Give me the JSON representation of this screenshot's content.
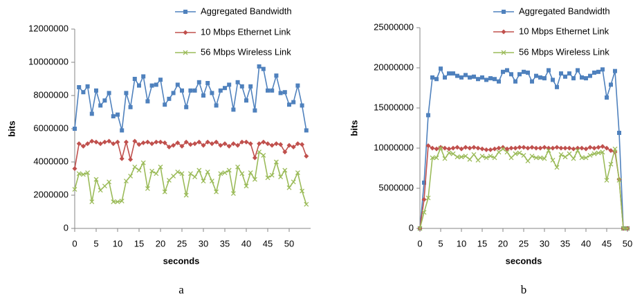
{
  "chart_data": [
    {
      "type": "line",
      "caption": "a",
      "x_label": "seconds",
      "y_label": "bits",
      "x": [
        0,
        1,
        2,
        3,
        4,
        5,
        6,
        7,
        8,
        9,
        10,
        11,
        12,
        13,
        14,
        15,
        16,
        17,
        18,
        19,
        20,
        21,
        22,
        23,
        24,
        25,
        26,
        27,
        28,
        29,
        30,
        31,
        32,
        33,
        34,
        35,
        36,
        37,
        38,
        39,
        40,
        41,
        42,
        43,
        44,
        45,
        46,
        47,
        48,
        49,
        50,
        51,
        52,
        53,
        54
      ],
      "xlim": [
        0,
        55
      ],
      "xticks": [
        0,
        5,
        10,
        15,
        20,
        25,
        30,
        35,
        40,
        45,
        50
      ],
      "ylim": [
        0,
        12000000
      ],
      "yticks": [
        0,
        2000000,
        4000000,
        6000000,
        8000000,
        10000000,
        12000000
      ],
      "grid": false,
      "series": [
        {
          "name": "Aggregated Bandwidth",
          "color": "#4f81bd",
          "marker": "square",
          "values": [
            6000000,
            8500000,
            8200000,
            8550000,
            6900000,
            8300000,
            7400000,
            7700000,
            8150000,
            6750000,
            6850000,
            5900000,
            8150000,
            7300000,
            9000000,
            8600000,
            9150000,
            7650000,
            8600000,
            8650000,
            8950000,
            7450000,
            7800000,
            8150000,
            8650000,
            8300000,
            7300000,
            8300000,
            8300000,
            8800000,
            8000000,
            8750000,
            8150000,
            7400000,
            8300000,
            8450000,
            8650000,
            7150000,
            8800000,
            8550000,
            7700000,
            8550000,
            7100000,
            9750000,
            9600000,
            8300000,
            8300000,
            9200000,
            8150000,
            8200000,
            7450000,
            7600000,
            8600000,
            7400000,
            5900000
          ]
        },
        {
          "name": "10 Mbps Ethernet Link",
          "color": "#c0504d",
          "marker": "diamond",
          "values": [
            3600000,
            5100000,
            4950000,
            5100000,
            5250000,
            5200000,
            5100000,
            5200000,
            5250000,
            5100000,
            5200000,
            4200000,
            5200000,
            4150000,
            5250000,
            5050000,
            5150000,
            5200000,
            5100000,
            5200000,
            5200000,
            5150000,
            4900000,
            5000000,
            5150000,
            4950000,
            5200000,
            5050000,
            5100000,
            5200000,
            5000000,
            5200000,
            5100000,
            5200000,
            5000000,
            5100000,
            4950000,
            5100000,
            5000000,
            5200000,
            5200000,
            5100000,
            4250000,
            5100000,
            5200000,
            5100000,
            5000000,
            5100000,
            5050000,
            4600000,
            5000000,
            4900000,
            5100000,
            5050000,
            4350000
          ]
        },
        {
          "name": "56 Mbps Wireless Link",
          "color": "#9bbb59",
          "marker": "x",
          "values": [
            2350000,
            3300000,
            3250000,
            3350000,
            1600000,
            2950000,
            2300000,
            2550000,
            2800000,
            1600000,
            1600000,
            1650000,
            2850000,
            3150000,
            3700000,
            3500000,
            3950000,
            2400000,
            3450000,
            3300000,
            3700000,
            2200000,
            2900000,
            3150000,
            3400000,
            3300000,
            2000000,
            3300000,
            3100000,
            3500000,
            2850000,
            3400000,
            2850000,
            2200000,
            3300000,
            3350000,
            3500000,
            2100000,
            3700000,
            3300000,
            2550000,
            3350000,
            2950000,
            4600000,
            4400000,
            3050000,
            3200000,
            4000000,
            3100000,
            3500000,
            2450000,
            2800000,
            3350000,
            2250000,
            1450000
          ]
        }
      ]
    },
    {
      "type": "line",
      "caption": "b",
      "x_label": "seconds",
      "y_label": "bits",
      "x": [
        0,
        1,
        2,
        3,
        4,
        5,
        6,
        7,
        8,
        9,
        10,
        11,
        12,
        13,
        14,
        15,
        16,
        17,
        18,
        19,
        20,
        21,
        22,
        23,
        24,
        25,
        26,
        27,
        28,
        29,
        30,
        31,
        32,
        33,
        34,
        35,
        36,
        37,
        38,
        39,
        40,
        41,
        42,
        43,
        44,
        45,
        46,
        47,
        48,
        49,
        50
      ],
      "xlim": [
        0,
        50
      ],
      "xticks": [
        0,
        5,
        10,
        15,
        20,
        25,
        30,
        35,
        40,
        45,
        50
      ],
      "ylim": [
        0,
        25000000
      ],
      "yticks": [
        0,
        5000000,
        10000000,
        15000000,
        20000000,
        25000000
      ],
      "grid": false,
      "series": [
        {
          "name": "Aggregated Bandwidth",
          "color": "#4f81bd",
          "marker": "square",
          "values": [
            0,
            5700000,
            14100000,
            18800000,
            18600000,
            19900000,
            18800000,
            19300000,
            19300000,
            19000000,
            18800000,
            19100000,
            18800000,
            18900000,
            18600000,
            18800000,
            18500000,
            18700000,
            18600000,
            18300000,
            19500000,
            19700000,
            19200000,
            18300000,
            19200000,
            19500000,
            19400000,
            18300000,
            19000000,
            18800000,
            18700000,
            19700000,
            18500000,
            17600000,
            19300000,
            18900000,
            19300000,
            18700000,
            19700000,
            18800000,
            18700000,
            19000000,
            19400000,
            19500000,
            19800000,
            16300000,
            17900000,
            19600000,
            11900000,
            0,
            0
          ]
        },
        {
          "name": "10 Mbps Ethernet Link",
          "color": "#c0504d",
          "marker": "diamond",
          "values": [
            0,
            3600000,
            10300000,
            10000000,
            9900000,
            10100000,
            10000000,
            9900000,
            10000000,
            10100000,
            9900000,
            10100000,
            10000000,
            10100000,
            10000000,
            9900000,
            9800000,
            9800000,
            9900000,
            10000000,
            10100000,
            9900000,
            10000000,
            10000000,
            10100000,
            10100000,
            10000000,
            10100000,
            10000000,
            10000000,
            10100000,
            10000000,
            10000000,
            10100000,
            10000000,
            10000000,
            10000000,
            9900000,
            10000000,
            10000000,
            9900000,
            10100000,
            10000000,
            10100000,
            10200000,
            10000000,
            9700000,
            9500000,
            6100000,
            0,
            0
          ]
        },
        {
          "name": "56 Mbps Wireless Link",
          "color": "#9bbb59",
          "marker": "x",
          "values": [
            0,
            2000000,
            3800000,
            8800000,
            8800000,
            10000000,
            8700000,
            9400000,
            9300000,
            8900000,
            8900000,
            9000000,
            8600000,
            9200000,
            8500000,
            9000000,
            8800000,
            9000000,
            8800000,
            9500000,
            9900000,
            9500000,
            8800000,
            9300000,
            9400000,
            9100000,
            8400000,
            9000000,
            8800000,
            8800000,
            8700000,
            9700000,
            8500000,
            7600000,
            9200000,
            8900000,
            9300000,
            8700000,
            9700000,
            8800000,
            8800000,
            9100000,
            9300000,
            9400000,
            9500000,
            6000000,
            8000000,
            9900000,
            6000000,
            0,
            0
          ]
        }
      ]
    }
  ]
}
